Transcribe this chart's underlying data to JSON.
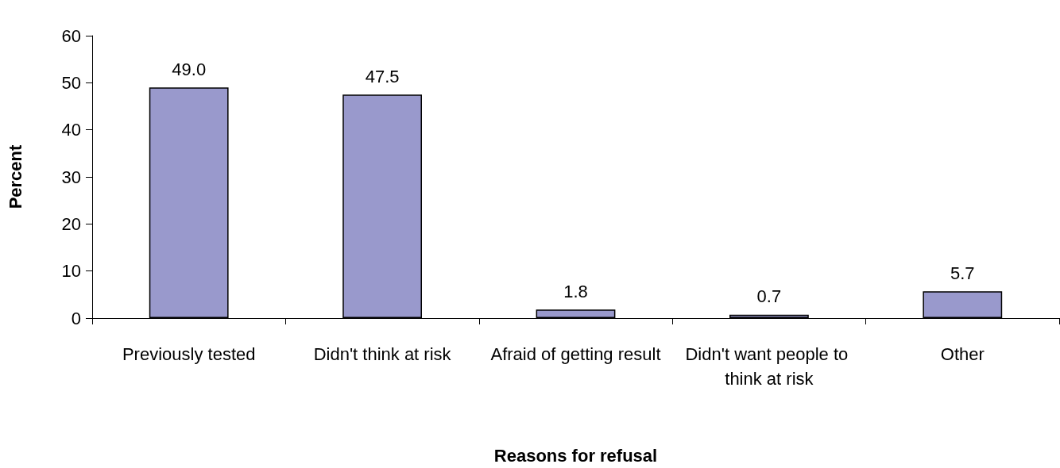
{
  "chart_data": {
    "type": "bar",
    "xlabel": "Reasons for refusal",
    "ylabel": "Percent",
    "categories": [
      "Previously tested",
      "Didn't think at risk",
      "Afraid of getting result",
      "Didn't want people to think at risk",
      "Other"
    ],
    "values": [
      49.0,
      47.5,
      1.8,
      0.7,
      5.7
    ],
    "value_labels": [
      "49.0",
      "47.5",
      "1.8",
      "0.7",
      "5.7"
    ],
    "color": "#9999cc",
    "ylim": [
      0,
      60
    ],
    "yticks": [
      0,
      10,
      20,
      30,
      40,
      50,
      60
    ],
    "grid": false
  }
}
